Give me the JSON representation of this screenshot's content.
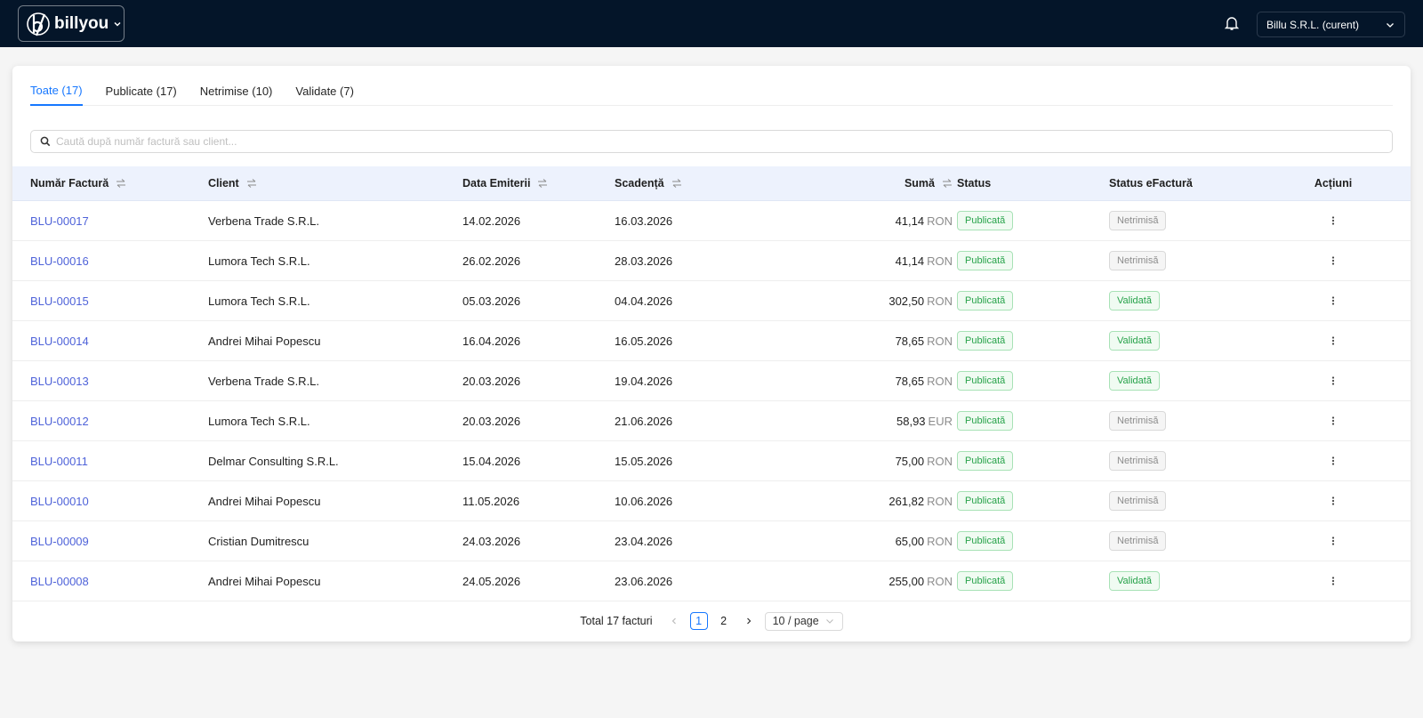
{
  "header": {
    "brand": "billyou",
    "company": "Billu S.R.L. (curent)"
  },
  "tabs": [
    "Toate (17)",
    "Publicate (17)",
    "Netrimise (10)",
    "Validate (7)"
  ],
  "search": {
    "placeholder": "Caută după număr factură sau client..."
  },
  "table": {
    "columns": [
      {
        "label": "Număr Factură",
        "sortable": true
      },
      {
        "label": "Client",
        "sortable": true
      },
      {
        "label": "Data Emiterii",
        "sortable": true
      },
      {
        "label": "Scadență",
        "sortable": true
      },
      {
        "label": "Sumă",
        "sortable": true
      },
      {
        "label": "Status",
        "sortable": false
      },
      {
        "label": "Status eFactură",
        "sortable": false
      },
      {
        "label": "Acțiuni",
        "sortable": false
      }
    ],
    "rows": [
      {
        "number": "BLU-00017",
        "client": "Verbena Trade S.R.L.",
        "issued": "14.02.2026",
        "due": "16.03.2026",
        "amount": "41,14",
        "currency": "RON",
        "status": "Publicată",
        "efactura": "Netrimisă",
        "efactura_tone": "gray"
      },
      {
        "number": "BLU-00016",
        "client": "Lumora Tech S.R.L.",
        "issued": "26.02.2026",
        "due": "28.03.2026",
        "amount": "41,14",
        "currency": "RON",
        "status": "Publicată",
        "efactura": "Netrimisă",
        "efactura_tone": "gray"
      },
      {
        "number": "BLU-00015",
        "client": "Lumora Tech S.R.L.",
        "issued": "05.03.2026",
        "due": "04.04.2026",
        "amount": "302,50",
        "currency": "RON",
        "status": "Publicată",
        "efactura": "Validată",
        "efactura_tone": "green"
      },
      {
        "number": "BLU-00014",
        "client": "Andrei Mihai Popescu",
        "issued": "16.04.2026",
        "due": "16.05.2026",
        "amount": "78,65",
        "currency": "RON",
        "status": "Publicată",
        "efactura": "Validată",
        "efactura_tone": "green"
      },
      {
        "number": "BLU-00013",
        "client": "Verbena Trade S.R.L.",
        "issued": "20.03.2026",
        "due": "19.04.2026",
        "amount": "78,65",
        "currency": "RON",
        "status": "Publicată",
        "efactura": "Validată",
        "efactura_tone": "green"
      },
      {
        "number": "BLU-00012",
        "client": "Lumora Tech S.R.L.",
        "issued": "20.03.2026",
        "due": "21.06.2026",
        "amount": "58,93",
        "currency": "EUR",
        "status": "Publicată",
        "efactura": "Netrimisă",
        "efactura_tone": "gray"
      },
      {
        "number": "BLU-00011",
        "client": "Delmar Consulting S.R.L.",
        "issued": "15.04.2026",
        "due": "15.05.2026",
        "amount": "75,00",
        "currency": "RON",
        "status": "Publicată",
        "efactura": "Netrimisă",
        "efactura_tone": "gray"
      },
      {
        "number": "BLU-00010",
        "client": "Andrei Mihai Popescu",
        "issued": "11.05.2026",
        "due": "10.06.2026",
        "amount": "261,82",
        "currency": "RON",
        "status": "Publicată",
        "efactura": "Netrimisă",
        "efactura_tone": "gray"
      },
      {
        "number": "BLU-00009",
        "client": "Cristian Dumitrescu",
        "issued": "24.03.2026",
        "due": "23.04.2026",
        "amount": "65,00",
        "currency": "RON",
        "status": "Publicată",
        "efactura": "Netrimisă",
        "efactura_tone": "gray"
      },
      {
        "number": "BLU-00008",
        "client": "Andrei Mihai Popescu",
        "issued": "24.05.2026",
        "due": "23.06.2026",
        "amount": "255,00",
        "currency": "RON",
        "status": "Publicată",
        "efactura": "Validată",
        "efactura_tone": "green"
      }
    ]
  },
  "pagination": {
    "total": "Total 17 facturi",
    "pages": [
      "1",
      "2"
    ],
    "page_size": "10 / page"
  }
}
